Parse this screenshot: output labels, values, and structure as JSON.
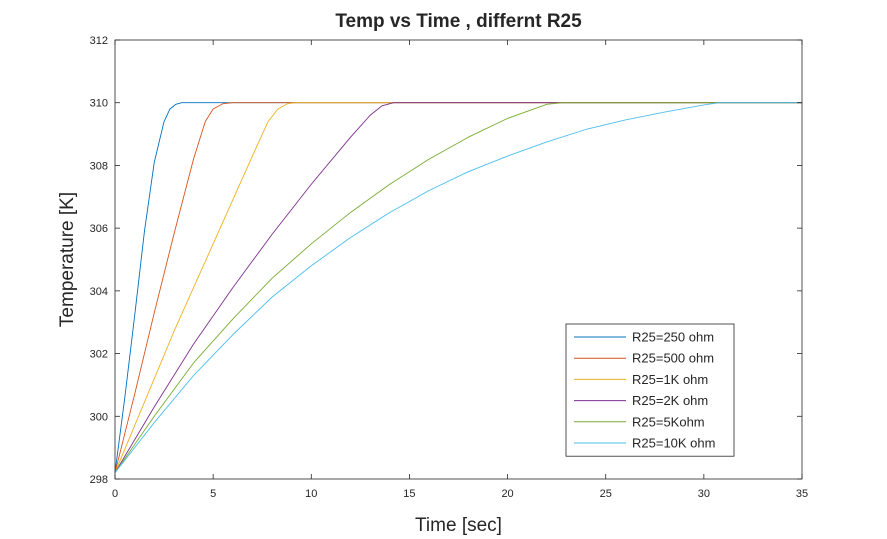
{
  "chart_data": {
    "type": "line",
    "title": "Temp vs Time , differnt R25",
    "xlabel": "Time [sec]",
    "ylabel": "Temperature [K]",
    "xlim": [
      0,
      35
    ],
    "ylim": [
      298,
      312
    ],
    "xticks": [
      0,
      5,
      10,
      15,
      20,
      25,
      30,
      35
    ],
    "yticks": [
      298,
      300,
      302,
      304,
      306,
      308,
      310,
      312
    ],
    "grid": false,
    "legend_position": "bottom-right",
    "series": [
      {
        "name": "R25=250 ohm",
        "color": "#0072BD",
        "x": [
          0,
          0.5,
          1.0,
          1.5,
          2.0,
          2.5,
          2.8,
          3.1,
          3.4,
          3.8,
          4.2,
          35
        ],
        "y": [
          298.2,
          300.6,
          303.2,
          305.9,
          308.1,
          309.4,
          309.8,
          309.95,
          310.0,
          310.0,
          310.0,
          310.0
        ]
      },
      {
        "name": "R25=500 ohm",
        "color": "#D95319",
        "x": [
          0,
          1,
          2,
          3,
          4,
          4.6,
          5.0,
          5.5,
          6.0,
          35
        ],
        "y": [
          298.2,
          300.7,
          303.3,
          305.8,
          308.2,
          309.4,
          309.8,
          309.97,
          310.0,
          310.0
        ],
        "x_sample": [
          0,
          1,
          2,
          3,
          4,
          4.6,
          5.0,
          5.5,
          6.0,
          35
        ]
      },
      {
        "name": "R25=1K ohm",
        "color": "#EDB120",
        "x": [
          0,
          1,
          2,
          3,
          4,
          5,
          6,
          7,
          7.8,
          8.3,
          8.8,
          9.2,
          35
        ],
        "y": [
          298.2,
          299.7,
          301.2,
          302.7,
          304.1,
          305.5,
          306.9,
          308.3,
          309.4,
          309.8,
          309.97,
          310.0,
          310.0
        ]
      },
      {
        "name": "R25=2K ohm",
        "color": "#7E2F8E",
        "x": [
          0,
          2,
          4,
          6,
          8,
          10,
          12,
          13,
          13.6,
          14.2,
          35
        ],
        "y": [
          298.2,
          300.3,
          302.3,
          304.1,
          305.8,
          307.4,
          308.9,
          309.6,
          309.9,
          310.0,
          310.0
        ]
      },
      {
        "name": "R25=5Kohm",
        "color": "#77AC30",
        "x": [
          0,
          2,
          4,
          6,
          8,
          10,
          12,
          14,
          16,
          18,
          20,
          22,
          22.8,
          35
        ],
        "y": [
          298.2,
          300.0,
          301.7,
          303.1,
          304.4,
          305.5,
          306.5,
          307.4,
          308.2,
          308.9,
          309.5,
          309.95,
          310.0,
          310.0
        ]
      },
      {
        "name": "R25=10K ohm",
        "color": "#4DBEEE",
        "x": [
          0,
          2,
          4,
          6,
          8,
          10,
          12,
          14,
          16,
          18,
          20,
          22,
          24,
          26,
          28,
          30,
          30.8,
          35
        ],
        "y": [
          298.2,
          299.8,
          301.3,
          302.6,
          303.8,
          304.8,
          305.7,
          306.5,
          307.2,
          307.8,
          308.3,
          308.75,
          309.15,
          309.45,
          309.7,
          309.93,
          310.0,
          310.0
        ]
      }
    ]
  }
}
